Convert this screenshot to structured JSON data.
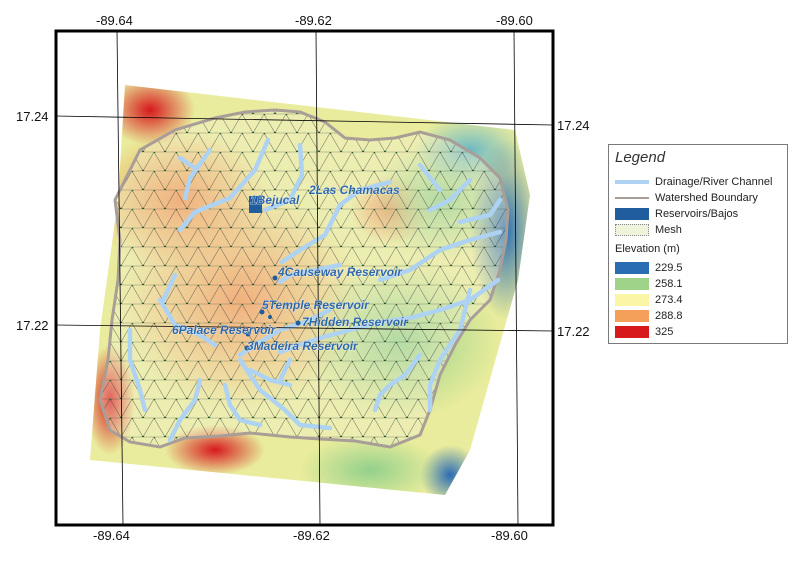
{
  "map": {
    "lon_labels": [
      "-89.64",
      "-89.62",
      "-89.60"
    ],
    "lat_labels": [
      "17.24",
      "17.22"
    ],
    "sites": [
      "1Bejucal",
      "2Las Chamacas",
      "4Causeway Reservoir",
      "5Temple Reservoir",
      "7Hidden Reservoir",
      "6Palace Reservoir",
      "3Madeira Reservoir"
    ]
  },
  "legend": {
    "title": "Legend",
    "items": [
      {
        "label": "Drainage/River Channel",
        "color": "#aed3f2"
      },
      {
        "label": "Watershed Boundary",
        "color": "#a89e97"
      },
      {
        "label": "Reservoirs/Bajos",
        "color": "#1f5d9e"
      },
      {
        "label": "Mesh",
        "color": "#eef3dc"
      }
    ],
    "elevation_title": "Elevation (m)",
    "elevation": [
      {
        "label": "229.5",
        "color": "#2a6db3"
      },
      {
        "label": "258.1",
        "color": "#9fd38a"
      },
      {
        "label": "273.4",
        "color": "#fbf5a6"
      },
      {
        "label": "288.8",
        "color": "#f5a05a"
      },
      {
        "label": "325",
        "color": "#d7191c"
      }
    ]
  }
}
